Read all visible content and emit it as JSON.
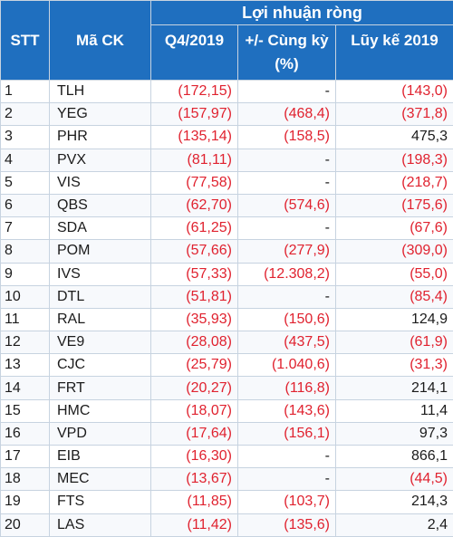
{
  "header": {
    "stt": "STT",
    "ma_ck": "Mã CK",
    "group": "Lợi nhuận ròng",
    "q4": "Q4/2019",
    "change": "+/- Cùng kỳ (%)",
    "ytd": "Lũy kế 2019"
  },
  "rows": [
    {
      "stt": "1",
      "ma": "TLH",
      "q4": "(172,15)",
      "chg": "-",
      "ytd": "(143,0)"
    },
    {
      "stt": "2",
      "ma": "YEG",
      "q4": "(157,97)",
      "chg": "(468,4)",
      "ytd": "(371,8)"
    },
    {
      "stt": "3",
      "ma": "PHR",
      "q4": "(135,14)",
      "chg": "(158,5)",
      "ytd": "475,3"
    },
    {
      "stt": "4",
      "ma": "PVX",
      "q4": "(81,11)",
      "chg": "-",
      "ytd": "(198,3)"
    },
    {
      "stt": "5",
      "ma": "VIS",
      "q4": "(77,58)",
      "chg": "-",
      "ytd": "(218,7)"
    },
    {
      "stt": "6",
      "ma": "QBS",
      "q4": "(62,70)",
      "chg": "(574,6)",
      "ytd": "(175,6)"
    },
    {
      "stt": "7",
      "ma": "SDA",
      "q4": "(61,25)",
      "chg": "-",
      "ytd": "(67,6)"
    },
    {
      "stt": "8",
      "ma": "POM",
      "q4": "(57,66)",
      "chg": "(277,9)",
      "ytd": "(309,0)"
    },
    {
      "stt": "9",
      "ma": "IVS",
      "q4": "(57,33)",
      "chg": "(12.308,2)",
      "ytd": "(55,0)"
    },
    {
      "stt": "10",
      "ma": "DTL",
      "q4": "(51,81)",
      "chg": "-",
      "ytd": "(85,4)"
    },
    {
      "stt": "11",
      "ma": "RAL",
      "q4": "(35,93)",
      "chg": "(150,6)",
      "ytd": "124,9"
    },
    {
      "stt": "12",
      "ma": "VE9",
      "q4": "(28,08)",
      "chg": "(437,5)",
      "ytd": "(61,9)"
    },
    {
      "stt": "13",
      "ma": "CJC",
      "q4": "(25,79)",
      "chg": "(1.040,6)",
      "ytd": "(31,3)"
    },
    {
      "stt": "14",
      "ma": "FRT",
      "q4": "(20,27)",
      "chg": "(116,8)",
      "ytd": "214,1"
    },
    {
      "stt": "15",
      "ma": "HMC",
      "q4": "(18,07)",
      "chg": "(143,6)",
      "ytd": "11,4"
    },
    {
      "stt": "16",
      "ma": "VPD",
      "q4": "(17,64)",
      "chg": "(156,1)",
      "ytd": "97,3"
    },
    {
      "stt": "17",
      "ma": "EIB",
      "q4": "(16,30)",
      "chg": "-",
      "ytd": "866,1"
    },
    {
      "stt": "18",
      "ma": "MEC",
      "q4": "(13,67)",
      "chg": "-",
      "ytd": "(44,5)"
    },
    {
      "stt": "19",
      "ma": "FTS",
      "q4": "(11,85)",
      "chg": "(103,7)",
      "ytd": "214,3"
    },
    {
      "stt": "20",
      "ma": "LAS",
      "q4": "(11,42)",
      "chg": "(135,6)",
      "ytd": "2,4"
    }
  ],
  "colors": {
    "header_bg": "#1f6fbf",
    "negative": "#e0222f",
    "text": "#1b1b1b",
    "grid": "#c7d3e0"
  }
}
